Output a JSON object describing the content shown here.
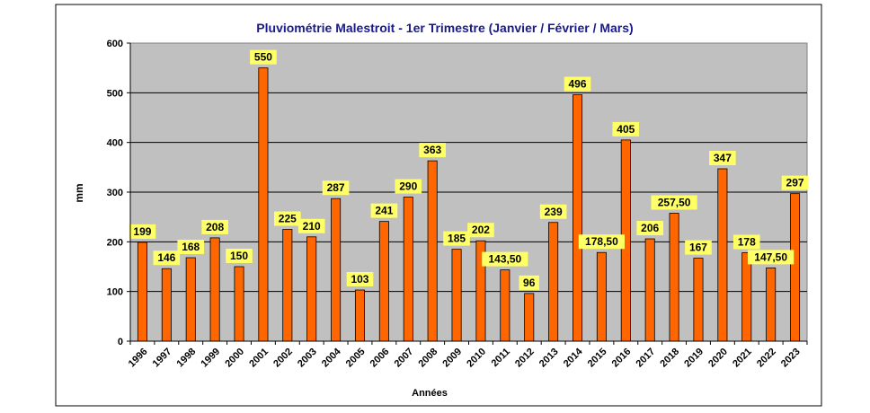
{
  "chart_data": {
    "type": "bar",
    "title": "Pluviométrie Malestroit - 1er Trimestre (Janvier / Février / Mars)",
    "xlabel": "Années",
    "ylabel": "mm",
    "ylim": [
      0,
      600
    ],
    "yticks": [
      "0",
      "100",
      "200",
      "300",
      "400",
      "500",
      "600"
    ],
    "grid": true,
    "legend": "none",
    "categories": [
      "1996",
      "1997",
      "1998",
      "1999",
      "2000",
      "2001",
      "2002",
      "2003",
      "2004",
      "2005",
      "2006",
      "2007",
      "2008",
      "2009",
      "2010",
      "2011",
      "2012",
      "2013",
      "2014",
      "2015",
      "2016",
      "2017",
      "2018",
      "2019",
      "2020",
      "2021",
      "2022",
      "2023"
    ],
    "values": [
      199,
      146,
      168,
      208,
      150,
      550,
      225,
      210,
      287,
      103,
      241,
      290,
      363,
      185,
      202,
      143.5,
      96,
      239,
      496,
      178.5,
      405,
      206,
      257.5,
      167,
      347,
      178,
      147.5,
      297
    ],
    "value_labels": [
      "199",
      "146",
      "168",
      "208",
      "150",
      "550",
      "225",
      "210",
      "287",
      "103",
      "241",
      "290",
      "363",
      "185",
      "202",
      "143,50",
      "96",
      "239",
      "496",
      "178,50",
      "405",
      "206",
      "257,50",
      "167",
      "347",
      "178",
      "147,50",
      "297"
    ],
    "colors": {
      "bar": "#ff6600",
      "bar_edge": "#000000",
      "plot_background": "#c0c0c0",
      "label_background": "#ffff66",
      "title": "#1a1a8c"
    }
  }
}
